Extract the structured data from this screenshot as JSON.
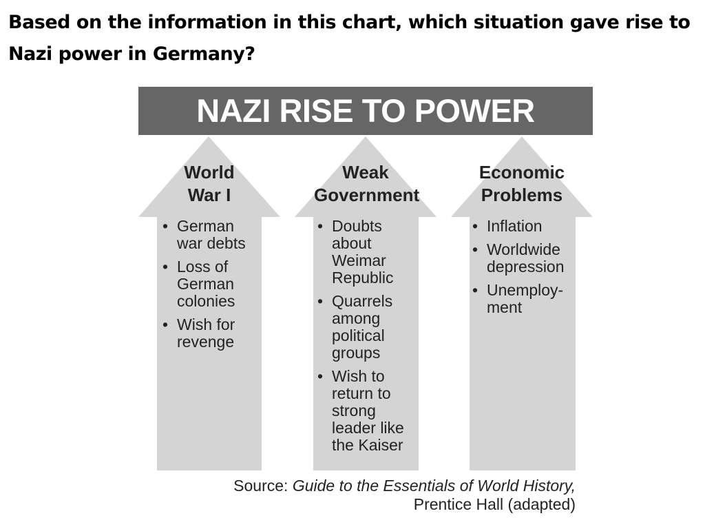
{
  "question": "Based on the information in this chart, which situation gave rise to Nazi power in Germany?",
  "chart_title": "NAZI RISE TO POWER",
  "colors": {
    "header": "#666666",
    "arrow": "#d4d4d4"
  },
  "columns": [
    {
      "title": "World War I",
      "items": [
        "German war debts",
        "Loss of German colonies",
        "Wish for revenge"
      ]
    },
    {
      "title": "Weak Government",
      "items": [
        "Doubts about Weimar Republic",
        "Quarrels among political groups",
        "Wish to return to strong leader like the Kaiser"
      ]
    },
    {
      "title": "Economic Problems",
      "items": [
        "Inflation",
        "Worldwide depression",
        "Unemploy- ment"
      ]
    }
  ],
  "source": {
    "label": "Source:",
    "title": "Guide to the Essentials of World History,",
    "publisher": "Prentice Hall (adapted)"
  }
}
